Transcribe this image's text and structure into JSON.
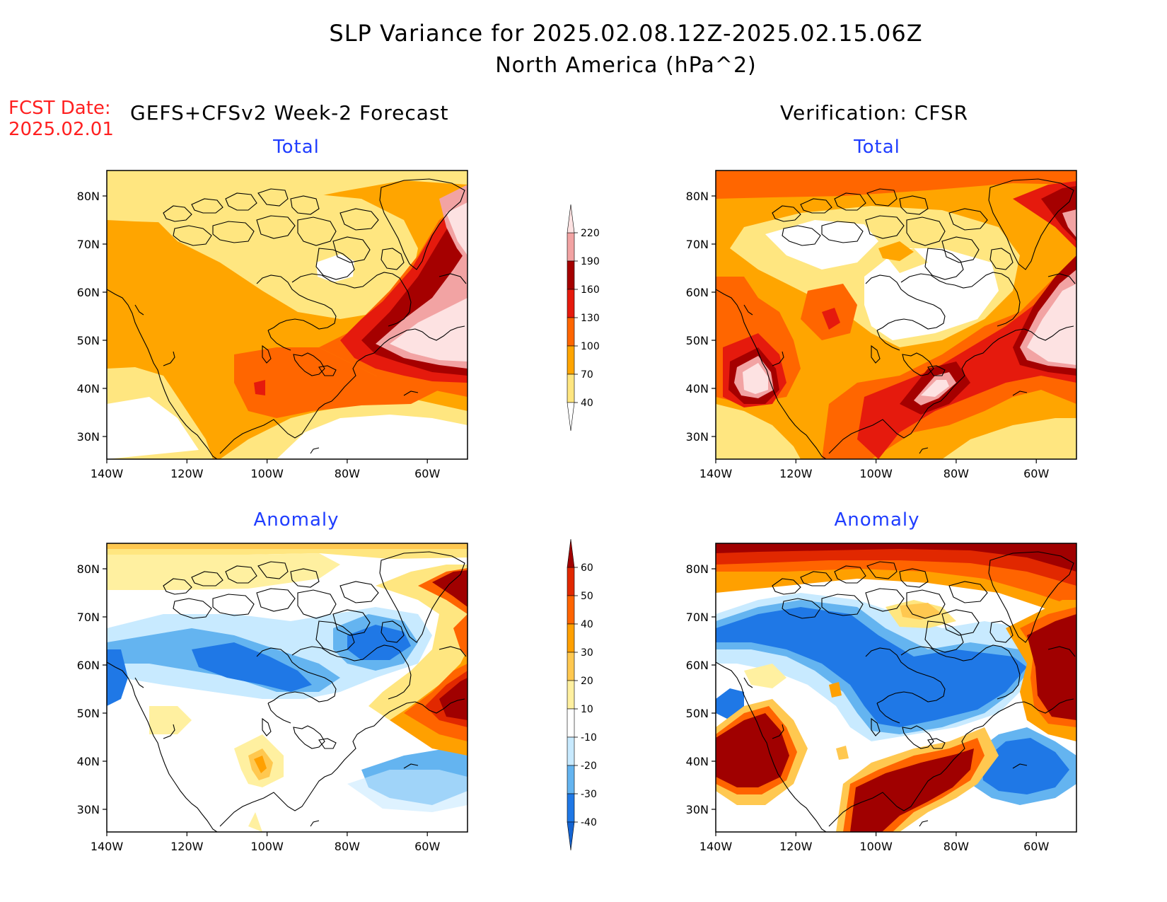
{
  "header": {
    "title_line1": "SLP Variance for 2025.02.08.12Z-2025.02.15.06Z",
    "title_line2": "North America (hPa^2)",
    "fcst_label": "FCST Date:",
    "fcst_date": "2025.02.01",
    "left_heading": "GEFS+CFSv2 Week-2 Forecast",
    "right_heading": "Verification: CFSR"
  },
  "panels": {
    "top_left_title": "Total",
    "top_right_title": "Total",
    "bottom_left_title": "Anomaly",
    "bottom_right_title": "Anomaly"
  },
  "axes": {
    "lon_labels": [
      "140W",
      "120W",
      "100W",
      "80W",
      "60W"
    ],
    "lat_labels": [
      "80N",
      "70N",
      "60N",
      "50N",
      "40N",
      "30N"
    ]
  },
  "colorbars": {
    "total": {
      "levels": [
        "40",
        "70",
        "100",
        "130",
        "160",
        "190",
        "220"
      ],
      "colors": [
        "#ffffff",
        "#ffe680",
        "#ffa500",
        "#ff6600",
        "#e51a0d",
        "#a50000",
        "#f2a3a3",
        "#fde2e2"
      ]
    },
    "anomaly": {
      "levels": [
        "-40",
        "-30",
        "-20",
        "-10",
        "10",
        "20",
        "30",
        "40",
        "50",
        "60"
      ],
      "colors": [
        "#1464d2",
        "#1f78e6",
        "#64b4f0",
        "#c8eaff",
        "#ffffff",
        "#fff0a0",
        "#ffc850",
        "#ffa000",
        "#ff6400",
        "#e12800",
        "#a00000"
      ]
    }
  },
  "colors": {
    "fcst_text": "#ff2020",
    "panel_title": "#1f3dff"
  }
}
